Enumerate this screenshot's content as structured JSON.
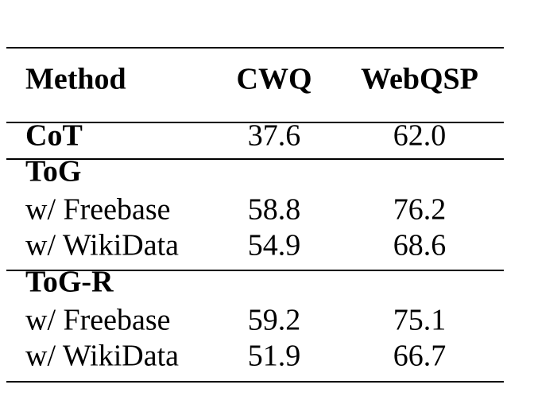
{
  "table": {
    "header": [
      "Method",
      "CWQ",
      "WebQSP"
    ],
    "sections": [
      {
        "rows": [
          [
            "CoT",
            "37.6",
            "62.0"
          ]
        ]
      },
      {
        "title": "ToG",
        "rows": [
          [
            "w/ Freebase",
            "58.8",
            "76.2"
          ],
          [
            "w/ WikiData",
            "54.9",
            "68.6"
          ]
        ]
      },
      {
        "title": "ToG-R",
        "rows": [
          [
            "w/ Freebase",
            "59.2",
            "75.1"
          ],
          [
            "w/ WikiData",
            "51.9",
            "66.7"
          ]
        ]
      }
    ]
  }
}
